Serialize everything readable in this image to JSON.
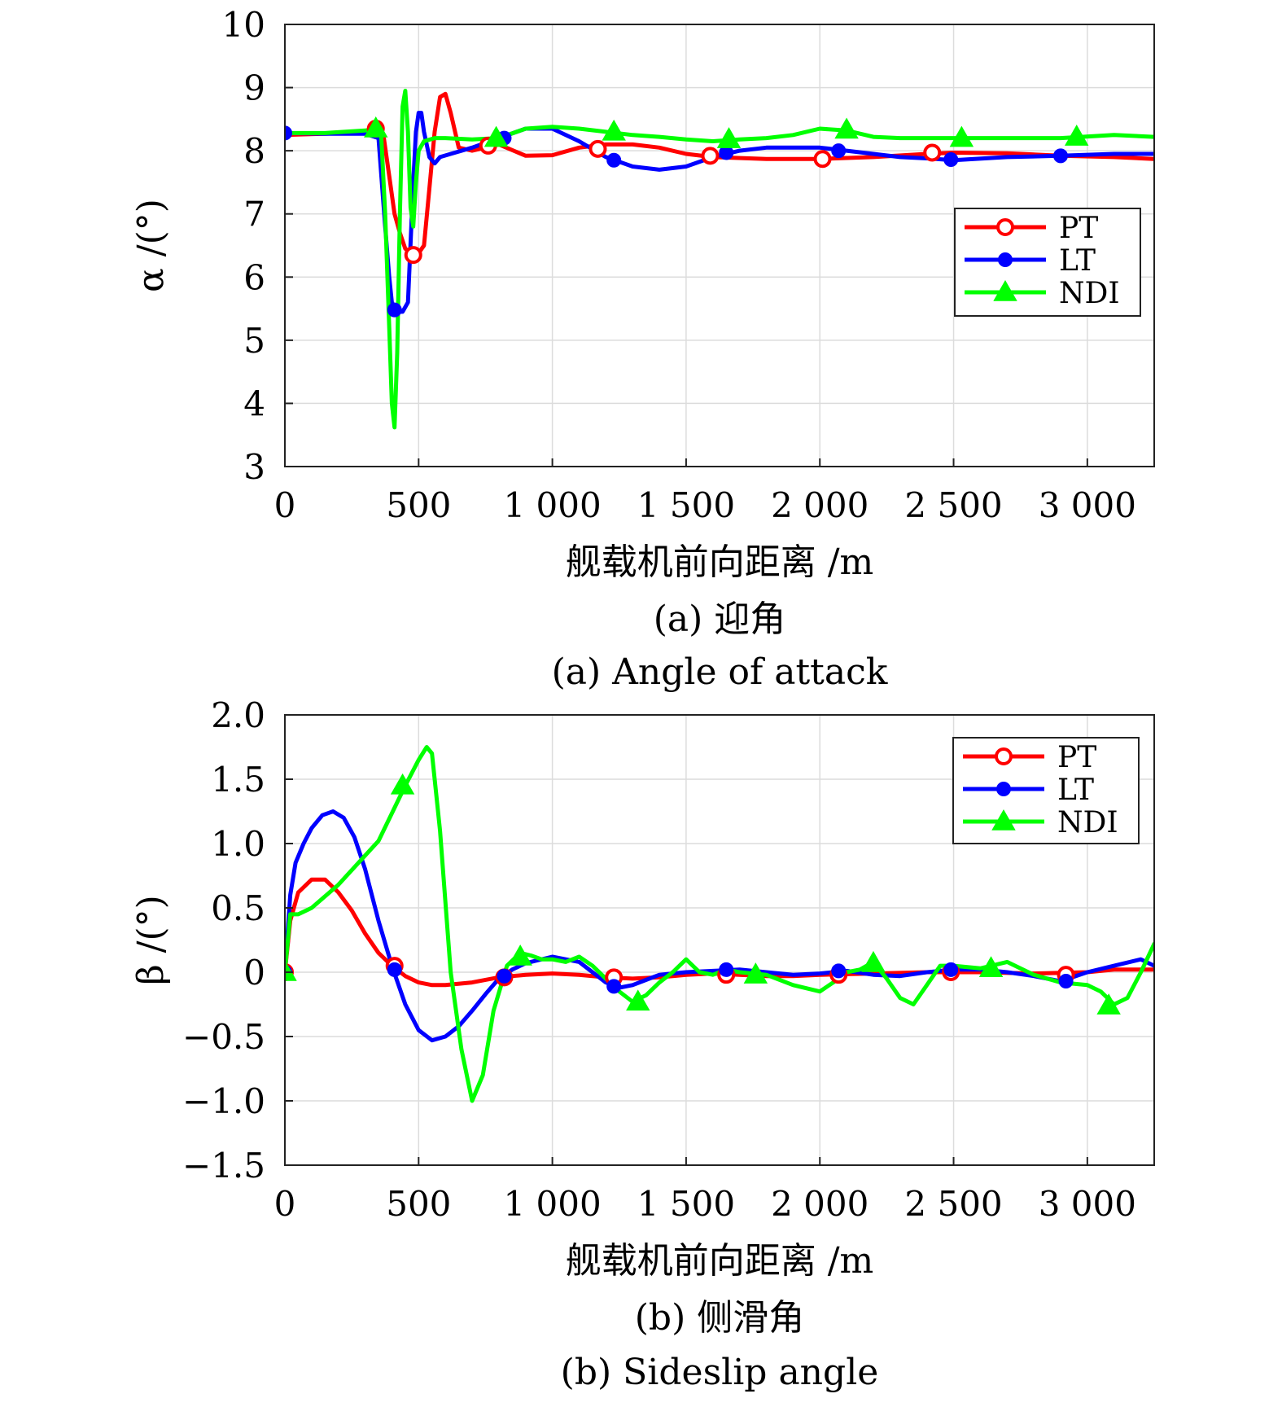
{
  "chart_data": [
    {
      "type": "line",
      "xlabel": "舰载机前向距离 /m",
      "ylabel": "α /(°)",
      "caption_cn": "(a) 迎角",
      "caption_en": "(a) Angle of attack",
      "xlim": [
        0,
        3250
      ],
      "ylim": [
        3,
        10
      ],
      "xticks": [
        0,
        500,
        1000,
        1500,
        2000,
        2500,
        3000
      ],
      "xtick_labels": [
        "0",
        "500",
        "1 000",
        "1 500",
        "2 000",
        "2 500",
        "3 000"
      ],
      "yticks": [
        3,
        4,
        5,
        6,
        7,
        8,
        9,
        10
      ],
      "ytick_labels": [
        "3",
        "4",
        "5",
        "6",
        "7",
        "8",
        "9",
        "10"
      ],
      "grid": true,
      "legend_position": "right-middle",
      "series": [
        {
          "name": "PT",
          "color": "#ff0000",
          "marker": "circle-open",
          "x": [
            0,
            150,
            300,
            340,
            370,
            390,
            410,
            430,
            450,
            480,
            500,
            520,
            540,
            560,
            580,
            600,
            620,
            650,
            700,
            800,
            900,
            1000,
            1100,
            1200,
            1300,
            1400,
            1500,
            1600,
            1800,
            2000,
            2200,
            2400,
            2500,
            2700,
            2900,
            3100,
            3250
          ],
          "y": [
            8.25,
            8.27,
            8.3,
            8.35,
            8.2,
            7.6,
            7.0,
            6.7,
            6.45,
            6.35,
            6.38,
            6.5,
            7.4,
            8.3,
            8.85,
            8.9,
            8.6,
            8.05,
            8.0,
            8.1,
            7.92,
            7.93,
            8.05,
            8.1,
            8.1,
            8.05,
            7.95,
            7.9,
            7.87,
            7.87,
            7.9,
            7.95,
            7.97,
            7.96,
            7.92,
            7.9,
            7.87
          ],
          "marker_x": [
            340,
            480,
            760,
            1170,
            1590,
            2010,
            2420
          ],
          "marker_y": [
            8.35,
            6.35,
            8.08,
            8.03,
            7.92,
            7.87,
            7.97
          ]
        },
        {
          "name": "LT",
          "color": "#0000ff",
          "marker": "dot",
          "x": [
            0,
            150,
            300,
            350,
            375,
            390,
            400,
            420,
            440,
            460,
            480,
            490,
            500,
            510,
            520,
            540,
            560,
            580,
            620,
            700,
            800,
            900,
            1000,
            1100,
            1200,
            1300,
            1400,
            1500,
            1600,
            1700,
            1800,
            1900,
            2000,
            2100,
            2200,
            2300,
            2400,
            2500,
            2700,
            2900,
            3100,
            3250
          ],
          "y": [
            8.28,
            8.27,
            8.27,
            8.2,
            6.8,
            6.0,
            5.6,
            5.45,
            5.45,
            5.6,
            7.5,
            8.3,
            8.6,
            8.6,
            8.3,
            7.9,
            7.8,
            7.9,
            7.95,
            8.05,
            8.2,
            8.35,
            8.35,
            8.15,
            7.9,
            7.75,
            7.7,
            7.75,
            7.9,
            8.0,
            8.05,
            8.05,
            8.05,
            8.0,
            7.95,
            7.9,
            7.88,
            7.85,
            7.9,
            7.92,
            7.95,
            7.95
          ],
          "marker_x": [
            0,
            410,
            820,
            1230,
            1650,
            2070,
            2490,
            2900
          ],
          "marker_y": [
            8.28,
            5.48,
            8.2,
            7.85,
            7.97,
            8.0,
            7.86,
            7.92
          ]
        },
        {
          "name": "NDI",
          "color": "#00ff00",
          "marker": "triangle",
          "x": [
            0,
            150,
            300,
            340,
            360,
            375,
            390,
            400,
            410,
            420,
            430,
            440,
            450,
            460,
            470,
            480,
            490,
            500,
            520,
            560,
            600,
            700,
            800,
            900,
            1000,
            1100,
            1200,
            1300,
            1400,
            1500,
            1600,
            1700,
            1800,
            1900,
            2000,
            2100,
            2200,
            2300,
            2400,
            2500,
            2700,
            2900,
            3100,
            3250
          ],
          "y": [
            8.28,
            8.28,
            8.32,
            8.35,
            8.25,
            7.0,
            5.2,
            4.0,
            3.62,
            4.8,
            7.0,
            8.7,
            8.95,
            8.3,
            7.1,
            6.8,
            7.5,
            8.0,
            8.15,
            8.2,
            8.2,
            8.18,
            8.2,
            8.35,
            8.38,
            8.35,
            8.3,
            8.25,
            8.22,
            8.18,
            8.15,
            8.18,
            8.2,
            8.25,
            8.35,
            8.32,
            8.22,
            8.2,
            8.2,
            8.2,
            8.2,
            8.2,
            8.25,
            8.22
          ],
          "marker_x": [
            340,
            790,
            1230,
            1660,
            2100,
            2530,
            2960
          ],
          "marker_y": [
            8.35,
            8.2,
            8.3,
            8.18,
            8.33,
            8.2,
            8.22
          ]
        }
      ]
    },
    {
      "type": "line",
      "xlabel": "舰载机前向距离 /m",
      "ylabel": "β /(°)",
      "caption_cn": "(b) 侧滑角",
      "caption_en": "(b) Sideslip angle",
      "xlim": [
        0,
        3250
      ],
      "ylim": [
        -1.5,
        2.0
      ],
      "xticks": [
        0,
        500,
        1000,
        1500,
        2000,
        2500,
        3000
      ],
      "xtick_labels": [
        "0",
        "500",
        "1 000",
        "1 500",
        "2 000",
        "2 500",
        "3 000"
      ],
      "yticks": [
        -1.5,
        -1.0,
        -0.5,
        0,
        0.5,
        1.0,
        1.5,
        2.0
      ],
      "ytick_labels": [
        "−1.5",
        "−1.0",
        "−0.5",
        "0",
        "0.5",
        "1.0",
        "1.5",
        "2.0"
      ],
      "grid": true,
      "legend_position": "top-right",
      "series": [
        {
          "name": "PT",
          "color": "#ff0000",
          "marker": "circle-open",
          "x": [
            0,
            20,
            50,
            100,
            150,
            200,
            250,
            300,
            350,
            400,
            450,
            500,
            550,
            600,
            700,
            800,
            900,
            1000,
            1100,
            1200,
            1300,
            1400,
            1500,
            1600,
            1700,
            1800,
            1900,
            2000,
            2200,
            2400,
            2600,
            2800,
            3000,
            3100,
            3250
          ],
          "y": [
            0.0,
            0.4,
            0.62,
            0.72,
            0.72,
            0.62,
            0.48,
            0.3,
            0.15,
            0.05,
            -0.03,
            -0.08,
            -0.1,
            -0.1,
            -0.08,
            -0.04,
            -0.02,
            -0.01,
            -0.02,
            -0.04,
            -0.05,
            -0.04,
            -0.02,
            -0.01,
            -0.02,
            -0.03,
            -0.03,
            -0.02,
            -0.01,
            0.0,
            0.0,
            -0.01,
            0.0,
            0.02,
            0.02
          ],
          "marker_x": [
            0,
            410,
            820,
            1230,
            1650,
            2070,
            2490,
            2920
          ],
          "marker_y": [
            0.0,
            0.05,
            -0.04,
            -0.04,
            -0.02,
            -0.02,
            0.0,
            -0.02
          ]
        },
        {
          "name": "LT",
          "color": "#0000ff",
          "marker": "dot",
          "x": [
            0,
            20,
            40,
            70,
            100,
            140,
            180,
            220,
            260,
            300,
            350,
            400,
            450,
            500,
            550,
            600,
            650,
            700,
            750,
            800,
            850,
            900,
            1000,
            1100,
            1150,
            1200,
            1250,
            1300,
            1350,
            1400,
            1500,
            1600,
            1700,
            1800,
            1900,
            2000,
            2100,
            2200,
            2300,
            2400,
            2500,
            2600,
            2700,
            2800,
            2900,
            3000,
            3100,
            3200,
            3250
          ],
          "y": [
            0.0,
            0.6,
            0.85,
            1.0,
            1.12,
            1.22,
            1.25,
            1.2,
            1.05,
            0.8,
            0.4,
            0.05,
            -0.25,
            -0.45,
            -0.53,
            -0.5,
            -0.42,
            -0.3,
            -0.17,
            -0.05,
            0.02,
            0.07,
            0.12,
            0.08,
            0.0,
            -0.08,
            -0.12,
            -0.1,
            -0.06,
            -0.02,
            0.0,
            0.01,
            0.02,
            0.0,
            -0.02,
            -0.01,
            0.01,
            -0.02,
            -0.03,
            0.0,
            0.02,
            0.02,
            0.0,
            -0.03,
            -0.07,
            0.0,
            0.05,
            0.1,
            0.05
          ],
          "marker_x": [
            0,
            410,
            820,
            1230,
            1650,
            2070,
            2490,
            2920
          ],
          "marker_y": [
            0.0,
            0.02,
            -0.03,
            -0.11,
            0.02,
            0.01,
            0.02,
            -0.07
          ]
        },
        {
          "name": "NDI",
          "color": "#00ff00",
          "marker": "triangle",
          "x": [
            0,
            20,
            50,
            100,
            200,
            350,
            450,
            500,
            530,
            550,
            580,
            620,
            660,
            700,
            740,
            780,
            830,
            880,
            920,
            960,
            1000,
            1050,
            1100,
            1150,
            1200,
            1250,
            1300,
            1350,
            1400,
            1450,
            1500,
            1550,
            1600,
            1650,
            1700,
            1800,
            1900,
            2000,
            2050,
            2100,
            2150,
            2200,
            2250,
            2300,
            2350,
            2400,
            2450,
            2500,
            2600,
            2700,
            2800,
            2900,
            3000,
            3050,
            3100,
            3150,
            3200,
            3250
          ],
          "y": [
            0.0,
            0.45,
            0.45,
            0.5,
            0.68,
            1.02,
            1.45,
            1.65,
            1.75,
            1.7,
            1.1,
            0.0,
            -0.6,
            -1.0,
            -0.8,
            -0.3,
            0.05,
            0.15,
            0.13,
            0.1,
            0.1,
            0.08,
            0.12,
            0.05,
            -0.05,
            -0.15,
            -0.23,
            -0.18,
            -0.08,
            0.0,
            0.1,
            0.0,
            -0.02,
            0.02,
            0.0,
            -0.02,
            -0.1,
            -0.15,
            -0.08,
            0.0,
            0.02,
            0.08,
            -0.05,
            -0.2,
            -0.25,
            -0.1,
            0.05,
            0.05,
            0.03,
            0.08,
            -0.02,
            -0.08,
            -0.1,
            -0.15,
            -0.25,
            -0.2,
            0.0,
            0.22
          ],
          "marker_x": [
            0,
            440,
            880,
            1320,
            1760,
            2200,
            2640,
            3080
          ],
          "marker_y": [
            0.0,
            1.45,
            0.12,
            -0.23,
            -0.02,
            0.07,
            0.03,
            -0.26
          ]
        }
      ]
    }
  ]
}
